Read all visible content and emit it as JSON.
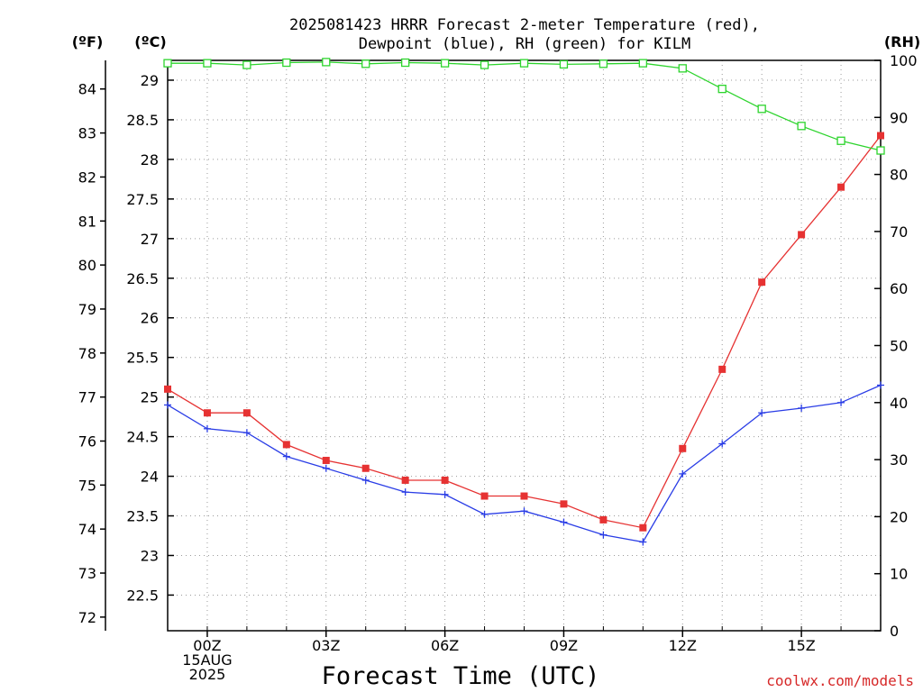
{
  "title": {
    "line1": "2025081423 HRRR Forecast 2-meter Temperature (red),",
    "line2": "Dewpoint (blue), RH (green) for KILM"
  },
  "credit": "coolwx.com/models",
  "chart_data": {
    "type": "line",
    "xlabel": "Forecast Time (UTC)",
    "x_categories": [
      "23Z",
      "00Z",
      "01Z",
      "02Z",
      "03Z",
      "04Z",
      "05Z",
      "06Z",
      "07Z",
      "08Z",
      "09Z",
      "10Z",
      "11Z",
      "12Z",
      "13Z",
      "14Z",
      "15Z",
      "16Z",
      "17Z"
    ],
    "x_tick_labels": [
      {
        "index": 1,
        "lines": [
          "00Z",
          "15AUG",
          "2025"
        ]
      },
      {
        "index": 4,
        "lines": [
          "03Z"
        ]
      },
      {
        "index": 7,
        "lines": [
          "06Z"
        ]
      },
      {
        "index": 10,
        "lines": [
          "09Z"
        ]
      },
      {
        "index": 13,
        "lines": [
          "12Z"
        ]
      },
      {
        "index": 16,
        "lines": [
          "15Z"
        ]
      }
    ],
    "y_left_c": {
      "label": "(ºC)",
      "range": [
        22.05,
        29.25
      ],
      "ticks": [
        "22.5",
        "23",
        "23.5",
        "24",
        "24.5",
        "25",
        "25.5",
        "26",
        "26.5",
        "27",
        "27.5",
        "28",
        "28.5",
        "29"
      ]
    },
    "y_left_f": {
      "label": "(ºF)",
      "range": [
        71.69,
        84.65
      ],
      "ticks": [
        "72",
        "73",
        "74",
        "75",
        "76",
        "77",
        "78",
        "79",
        "80",
        "81",
        "82",
        "83",
        "84"
      ]
    },
    "y_right": {
      "label": "(RH)",
      "range": [
        0,
        100
      ],
      "ticks": [
        "0",
        "10",
        "20",
        "30",
        "40",
        "50",
        "60",
        "70",
        "80",
        "90",
        "100"
      ]
    },
    "grid": true,
    "series": [
      {
        "name": "Temperature",
        "axis": "celsius",
        "color": "#e63232",
        "marker": "filled-square",
        "values": [
          25.1,
          24.8,
          24.8,
          24.4,
          24.2,
          24.1,
          23.95,
          23.95,
          23.75,
          23.75,
          23.65,
          23.45,
          23.35,
          24.35,
          25.35,
          26.45,
          27.05,
          27.65,
          28.3
        ]
      },
      {
        "name": "Dewpoint",
        "axis": "celsius",
        "color": "#2a3de6",
        "marker": "plus",
        "values": [
          24.9,
          24.6,
          24.55,
          24.25,
          24.1,
          23.95,
          23.8,
          23.77,
          23.52,
          23.56,
          23.42,
          23.26,
          23.17,
          24.03,
          24.41,
          24.8,
          24.86,
          24.93,
          25.15
        ]
      },
      {
        "name": "RH",
        "axis": "rh",
        "color": "#2dd42d",
        "marker": "open-square",
        "values": [
          99.5,
          99.5,
          99.2,
          99.6,
          99.7,
          99.4,
          99.6,
          99.5,
          99.2,
          99.5,
          99.3,
          99.4,
          99.5,
          98.6,
          95.0,
          91.5,
          88.5,
          85.9,
          84.2
        ]
      }
    ]
  }
}
